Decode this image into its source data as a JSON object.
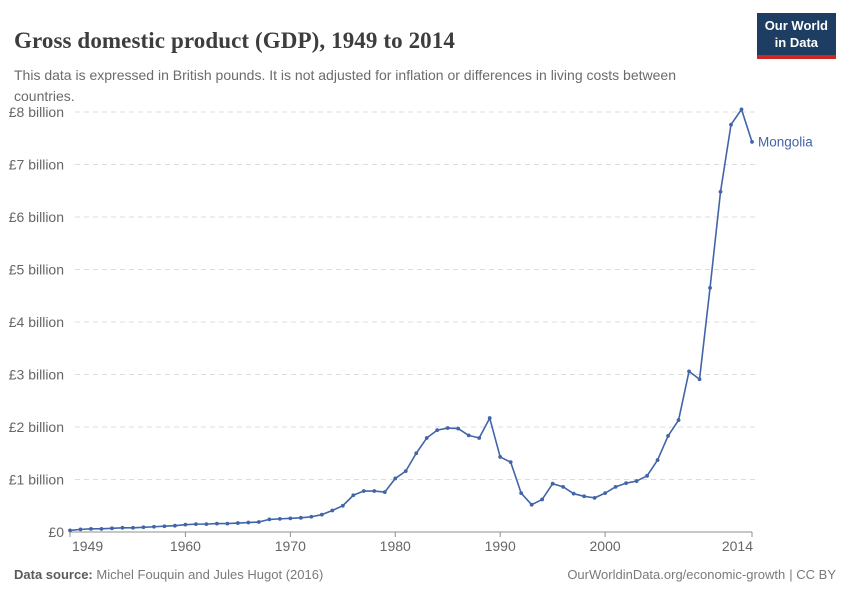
{
  "header": {
    "title": "Gross domestic product (GDP), 1949 to 2014",
    "subtitle": "This data is expressed in British pounds. It is not adjusted for inflation or differences in living costs between countries.",
    "logo": {
      "line1": "Our World",
      "line2": "in Data"
    }
  },
  "chart_data": {
    "type": "line",
    "title": "Gross domestic product (GDP), 1949 to 2014",
    "xlabel": "",
    "ylabel": "",
    "grid": "horizontal-dashed",
    "legend": "end-of-line-label",
    "xlim": [
      1949,
      2014
    ],
    "ylim": [
      0,
      8.4
    ],
    "x_ticks": [
      1949,
      1960,
      1970,
      1980,
      1990,
      2000,
      2014
    ],
    "y_ticks": [
      {
        "value": 0,
        "label": "£0"
      },
      {
        "value": 1,
        "label": "£1 billion"
      },
      {
        "value": 2,
        "label": "£2 billion"
      },
      {
        "value": 3,
        "label": "£3 billion"
      },
      {
        "value": 4,
        "label": "£4 billion"
      },
      {
        "value": 5,
        "label": "£5 billion"
      },
      {
        "value": 6,
        "label": "£6 billion"
      },
      {
        "value": 7,
        "label": "£7 billion"
      },
      {
        "value": 8,
        "label": "£8 billion"
      }
    ],
    "series": [
      {
        "name": "Mongolia",
        "color": "#4165a8",
        "x": [
          1949,
          1950,
          1951,
          1952,
          1953,
          1954,
          1955,
          1956,
          1957,
          1958,
          1959,
          1960,
          1961,
          1962,
          1963,
          1964,
          1965,
          1966,
          1967,
          1968,
          1969,
          1970,
          1971,
          1972,
          1973,
          1974,
          1975,
          1976,
          1977,
          1978,
          1979,
          1980,
          1981,
          1982,
          1983,
          1984,
          1985,
          1986,
          1987,
          1988,
          1989,
          1990,
          1991,
          1992,
          1993,
          1994,
          1995,
          1996,
          1997,
          1998,
          1999,
          2000,
          2001,
          2002,
          2003,
          2004,
          2005,
          2006,
          2007,
          2008,
          2009,
          2010,
          2011,
          2012,
          2013,
          2014
        ],
        "values": [
          0.03,
          0.05,
          0.06,
          0.06,
          0.07,
          0.08,
          0.08,
          0.09,
          0.1,
          0.11,
          0.12,
          0.14,
          0.15,
          0.15,
          0.16,
          0.16,
          0.17,
          0.18,
          0.19,
          0.24,
          0.25,
          0.26,
          0.27,
          0.29,
          0.33,
          0.41,
          0.5,
          0.7,
          0.78,
          0.78,
          0.76,
          1.02,
          1.16,
          1.5,
          1.79,
          1.94,
          1.98,
          1.97,
          1.84,
          1.79,
          2.17,
          1.43,
          1.33,
          0.74,
          0.52,
          0.62,
          0.92,
          0.86,
          0.73,
          0.68,
          0.65,
          0.74,
          0.86,
          0.93,
          0.97,
          1.07,
          1.37,
          1.83,
          2.13,
          3.06,
          2.91,
          4.65,
          6.48,
          7.76,
          8.05,
          7.43
        ]
      }
    ]
  },
  "colors": {
    "line": "#4165a8",
    "gridline": "#dcdcdc",
    "axis": "#8f8f8f",
    "tick_label": "#666666",
    "logo_bg": "#1d3d63",
    "logo_stripe": "#cf2622"
  },
  "footer": {
    "source_label": "Data source:",
    "source_text": " Michel Fouquin and Jules Hugot (2016)",
    "url_text": "OurWorldinData.org/economic-growth",
    "license_text": "| CC BY"
  }
}
